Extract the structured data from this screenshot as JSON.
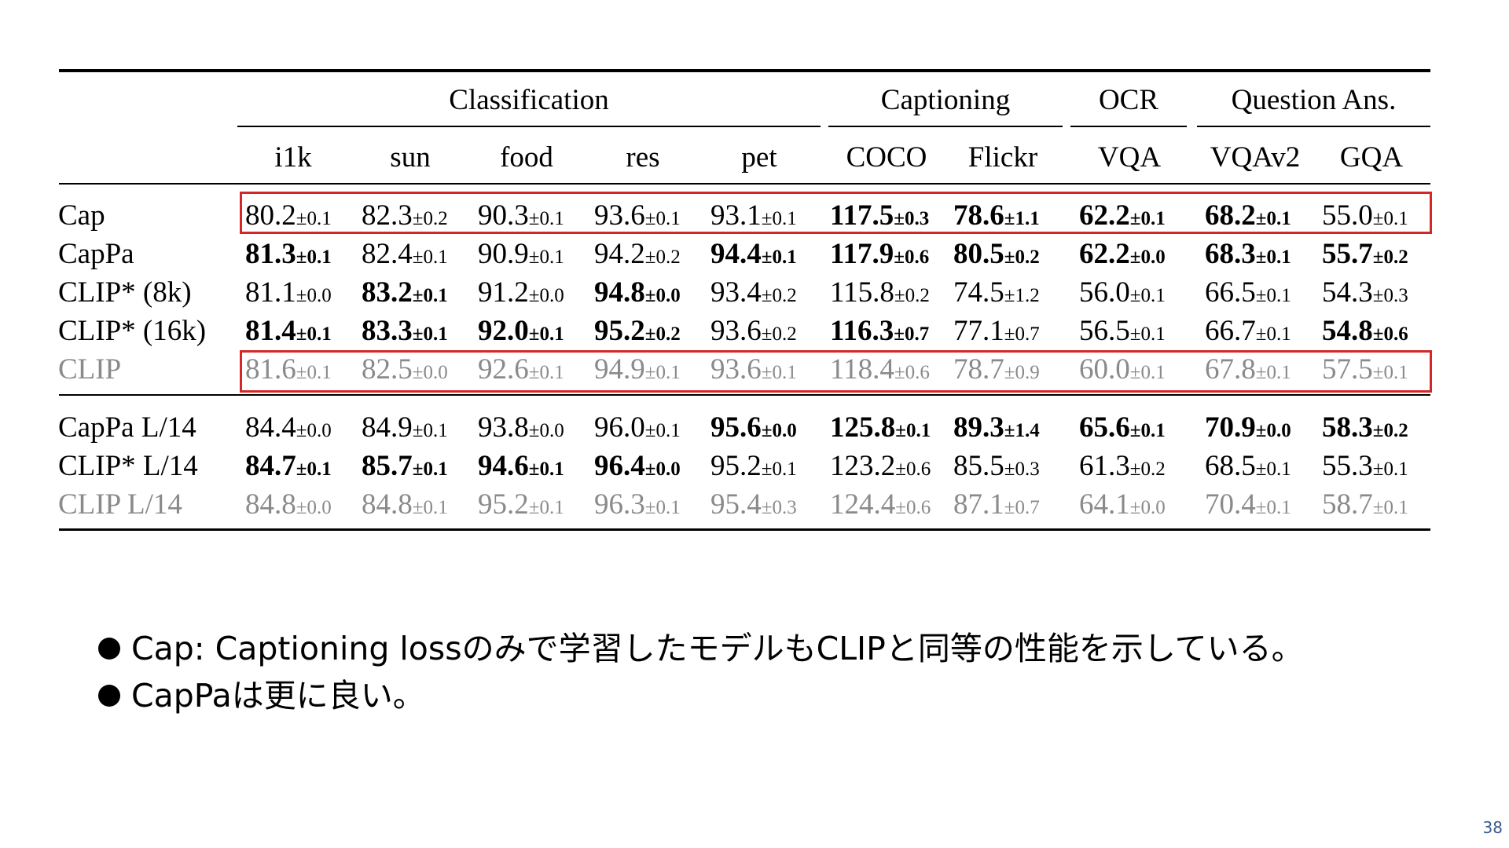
{
  "table": {
    "groups": [
      {
        "label": "Classification"
      },
      {
        "label": "Captioning"
      },
      {
        "label": "OCR"
      },
      {
        "label": "Question Ans."
      }
    ],
    "columns": [
      "i1k",
      "sun",
      "food",
      "res",
      "pet",
      "COCO",
      "Flickr",
      "VQA",
      "VQAv2",
      "GQA"
    ],
    "rows": [
      {
        "label": "Cap",
        "grey": false,
        "cells": [
          {
            "v": "80.2",
            "pm": "±0.1",
            "b": false
          },
          {
            "v": "82.3",
            "pm": "±0.2",
            "b": false
          },
          {
            "v": "90.3",
            "pm": "±0.1",
            "b": false
          },
          {
            "v": "93.6",
            "pm": "±0.1",
            "b": false
          },
          {
            "v": "93.1",
            "pm": "±0.1",
            "b": false
          },
          {
            "v": "117.5",
            "pm": "±0.3",
            "b": true
          },
          {
            "v": "78.6",
            "pm": "±1.1",
            "b": true
          },
          {
            "v": "62.2",
            "pm": "±0.1",
            "b": true
          },
          {
            "v": "68.2",
            "pm": "±0.1",
            "b": true
          },
          {
            "v": "55.0",
            "pm": "±0.1",
            "b": false
          }
        ]
      },
      {
        "label": "CapPa",
        "grey": false,
        "cells": [
          {
            "v": "81.3",
            "pm": "±0.1",
            "b": true
          },
          {
            "v": "82.4",
            "pm": "±0.1",
            "b": false
          },
          {
            "v": "90.9",
            "pm": "±0.1",
            "b": false
          },
          {
            "v": "94.2",
            "pm": "±0.2",
            "b": false
          },
          {
            "v": "94.4",
            "pm": "±0.1",
            "b": true
          },
          {
            "v": "117.9",
            "pm": "±0.6",
            "b": true
          },
          {
            "v": "80.5",
            "pm": "±0.2",
            "b": true
          },
          {
            "v": "62.2",
            "pm": "±0.0",
            "b": true
          },
          {
            "v": "68.3",
            "pm": "±0.1",
            "b": true
          },
          {
            "v": "55.7",
            "pm": "±0.2",
            "b": true
          }
        ]
      },
      {
        "label": "CLIP* (8k)",
        "grey": false,
        "cells": [
          {
            "v": "81.1",
            "pm": "±0.0",
            "b": false
          },
          {
            "v": "83.2",
            "pm": "±0.1",
            "b": true
          },
          {
            "v": "91.2",
            "pm": "±0.0",
            "b": false
          },
          {
            "v": "94.8",
            "pm": "±0.0",
            "b": true
          },
          {
            "v": "93.4",
            "pm": "±0.2",
            "b": false
          },
          {
            "v": "115.8",
            "pm": "±0.2",
            "b": false
          },
          {
            "v": "74.5",
            "pm": "±1.2",
            "b": false
          },
          {
            "v": "56.0",
            "pm": "±0.1",
            "b": false
          },
          {
            "v": "66.5",
            "pm": "±0.1",
            "b": false
          },
          {
            "v": "54.3",
            "pm": "±0.3",
            "b": false
          }
        ]
      },
      {
        "label": "CLIP* (16k)",
        "grey": false,
        "cells": [
          {
            "v": "81.4",
            "pm": "±0.1",
            "b": true
          },
          {
            "v": "83.3",
            "pm": "±0.1",
            "b": true
          },
          {
            "v": "92.0",
            "pm": "±0.1",
            "b": true
          },
          {
            "v": "95.2",
            "pm": "±0.2",
            "b": true
          },
          {
            "v": "93.6",
            "pm": "±0.2",
            "b": false
          },
          {
            "v": "116.3",
            "pm": "±0.7",
            "b": true
          },
          {
            "v": "77.1",
            "pm": "±0.7",
            "b": false
          },
          {
            "v": "56.5",
            "pm": "±0.1",
            "b": false
          },
          {
            "v": "66.7",
            "pm": "±0.1",
            "b": false
          },
          {
            "v": "54.8",
            "pm": "±0.6",
            "b": true
          }
        ]
      },
      {
        "label": "CLIP",
        "grey": true,
        "cells": [
          {
            "v": "81.6",
            "pm": "±0.1",
            "b": false
          },
          {
            "v": "82.5",
            "pm": "±0.0",
            "b": false
          },
          {
            "v": "92.6",
            "pm": "±0.1",
            "b": false
          },
          {
            "v": "94.9",
            "pm": "±0.1",
            "b": false
          },
          {
            "v": "93.6",
            "pm": "±0.1",
            "b": false
          },
          {
            "v": "118.4",
            "pm": "±0.6",
            "b": false
          },
          {
            "v": "78.7",
            "pm": "±0.9",
            "b": false
          },
          {
            "v": "60.0",
            "pm": "±0.1",
            "b": false
          },
          {
            "v": "67.8",
            "pm": "±0.1",
            "b": false
          },
          {
            "v": "57.5",
            "pm": "±0.1",
            "b": false
          }
        ]
      },
      {
        "label": "CapPa L/14",
        "grey": false,
        "cells": [
          {
            "v": "84.4",
            "pm": "±0.0",
            "b": false
          },
          {
            "v": "84.9",
            "pm": "±0.1",
            "b": false
          },
          {
            "v": "93.8",
            "pm": "±0.0",
            "b": false
          },
          {
            "v": "96.0",
            "pm": "±0.1",
            "b": false
          },
          {
            "v": "95.6",
            "pm": "±0.0",
            "b": true
          },
          {
            "v": "125.8",
            "pm": "±0.1",
            "b": true
          },
          {
            "v": "89.3",
            "pm": "±1.4",
            "b": true
          },
          {
            "v": "65.6",
            "pm": "±0.1",
            "b": true
          },
          {
            "v": "70.9",
            "pm": "±0.0",
            "b": true
          },
          {
            "v": "58.3",
            "pm": "±0.2",
            "b": true
          }
        ]
      },
      {
        "label": "CLIP* L/14",
        "grey": false,
        "cells": [
          {
            "v": "84.7",
            "pm": "±0.1",
            "b": true
          },
          {
            "v": "85.7",
            "pm": "±0.1",
            "b": true
          },
          {
            "v": "94.6",
            "pm": "±0.1",
            "b": true
          },
          {
            "v": "96.4",
            "pm": "±0.0",
            "b": true
          },
          {
            "v": "95.2",
            "pm": "±0.1",
            "b": false
          },
          {
            "v": "123.2",
            "pm": "±0.6",
            "b": false
          },
          {
            "v": "85.5",
            "pm": "±0.3",
            "b": false
          },
          {
            "v": "61.3",
            "pm": "±0.2",
            "b": false
          },
          {
            "v": "68.5",
            "pm": "±0.1",
            "b": false
          },
          {
            "v": "55.3",
            "pm": "±0.1",
            "b": false
          }
        ]
      },
      {
        "label": "CLIP L/14",
        "grey": true,
        "cells": [
          {
            "v": "84.8",
            "pm": "±0.0",
            "b": false
          },
          {
            "v": "84.8",
            "pm": "±0.1",
            "b": false
          },
          {
            "v": "95.2",
            "pm": "±0.1",
            "b": false
          },
          {
            "v": "96.3",
            "pm": "±0.1",
            "b": false
          },
          {
            "v": "95.4",
            "pm": "±0.3",
            "b": false
          },
          {
            "v": "124.4",
            "pm": "±0.6",
            "b": false
          },
          {
            "v": "87.1",
            "pm": "±0.7",
            "b": false
          },
          {
            "v": "64.1",
            "pm": "±0.0",
            "b": false
          },
          {
            "v": "70.4",
            "pm": "±0.1",
            "b": false
          },
          {
            "v": "58.7",
            "pm": "±0.1",
            "b": false
          }
        ]
      }
    ],
    "highlighted_rows": [
      "Cap",
      "CLIP"
    ],
    "highlight_color": "#d62728",
    "grey_color": "#8a8a8a"
  },
  "bullets": [
    "Cap: Captioning lossのみで学習したモデルもCLIPと同等の性能を示している。",
    "CapPaは更に良い。"
  ],
  "page_number": "38"
}
